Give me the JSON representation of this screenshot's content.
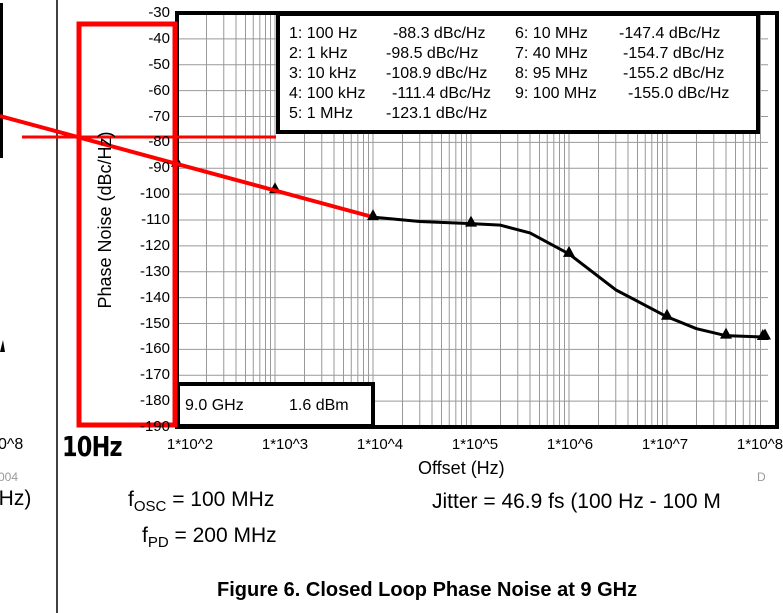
{
  "chart_data": {
    "type": "line",
    "title": "Figure 6. Closed Loop Phase Noise at 9 GHz",
    "xlabel": "Offset (Hz)",
    "ylabel": "Phase Noise (dBc/Hz)",
    "x_scale": "log",
    "xlim": [
      100,
      100000000
    ],
    "ylim": [
      -190,
      -30
    ],
    "grid": true,
    "x_tick_labels": [
      "1*10^2",
      "1*10^3",
      "1*10^4",
      "1*10^5",
      "1*10^6",
      "1*10^7",
      "1*10^8"
    ],
    "y_tick_labels": [
      "-30",
      "-40",
      "-50",
      "-60",
      "-70",
      "-80",
      "-90",
      "-100",
      "-110",
      "-120",
      "-130",
      "-140",
      "-150",
      "-160",
      "-170",
      "-180",
      "-190"
    ],
    "series": [
      {
        "x": [
          100,
          200,
          500,
          1000,
          3000,
          10000,
          30000,
          100000,
          200000,
          400000,
          1000000,
          3000000,
          10000000,
          20000000,
          40000000,
          95000000,
          100000000
        ],
        "y": [
          -88.3,
          -91.5,
          -95.5,
          -98.5,
          -103.5,
          -108.9,
          -110.6,
          -111.4,
          -112,
          -115,
          -123.1,
          -137,
          -147.4,
          -152,
          -154.7,
          -155.2,
          -155.0
        ]
      }
    ],
    "markers": [
      {
        "label": "1: 100 Hz",
        "value": "-88.3 dBc/Hz",
        "x": 100,
        "y": -88.3
      },
      {
        "label": "2: 1 kHz",
        "value": "-98.5 dBc/Hz",
        "x": 1000,
        "y": -98.5
      },
      {
        "label": "3: 10 kHz",
        "value": "-108.9 dBc/Hz",
        "x": 10000,
        "y": -108.9
      },
      {
        "label": "4: 100 kHz",
        "value": "-111.4 dBc/Hz",
        "x": 100000,
        "y": -111.4
      },
      {
        "label": "5: 1 MHz",
        "value": "-123.1 dBc/Hz",
        "x": 1000000,
        "y": -123.1
      },
      {
        "label": "6: 10 MHz",
        "value": "-147.4 dBc/Hz",
        "x": 10000000,
        "y": -147.4
      },
      {
        "label": "7: 40 MHz",
        "value": "-154.7 dBc/Hz",
        "x": 40000000,
        "y": -154.7
      },
      {
        "label": "8: 95 MHz",
        "value": "-155.2 dBc/Hz",
        "x": 95000000,
        "y": -155.2
      },
      {
        "label": "9: 100 MHz",
        "value": "-155.0 dBc/Hz",
        "x": 100000000,
        "y": -155.0
      }
    ],
    "carrier_box": {
      "freq": "9.0 GHz",
      "power": "1.6 dBm"
    }
  },
  "notes": {
    "fosc_f": "f",
    "fosc_sub": "OSC",
    "fosc_val": "= 100 MHz",
    "fpd_f": "f",
    "fpd_sub": "PD",
    "fpd_val": "= 200 MHz",
    "jitter": "Jitter = 46.9 fs (100 Hz - 100 M",
    "handwritten": "10Hz",
    "left_fragments": [
      "0^8",
      "004",
      "lHz)"
    ],
    "corner_fragment": "D"
  },
  "colors": {
    "annotation": "#ff0000",
    "trace": "#000000",
    "grid": "#999999"
  }
}
